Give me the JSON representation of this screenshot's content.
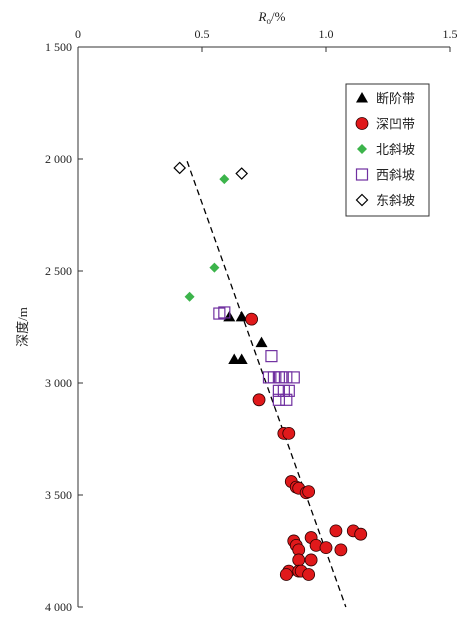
{
  "chart_data": {
    "type": "scatter",
    "xlabel": "R",
    "xlabel_sub": "o",
    "xlabel_unit": "/%",
    "ylabel": "深度/m",
    "xlim": [
      0,
      1.5
    ],
    "ylim": [
      1500,
      4000
    ],
    "y_reversed": true,
    "x_axis_position": "top",
    "x_ticks": [
      0,
      0.5,
      1.0,
      1.5
    ],
    "x_tick_labels": [
      "0",
      "0.5",
      "1.0",
      "1.5"
    ],
    "y_ticks": [
      1500,
      2000,
      2500,
      3000,
      3500,
      4000
    ],
    "y_tick_labels": [
      "1 500",
      "2 000",
      "2 500",
      "3 000",
      "3 500",
      "4 000"
    ],
    "grid": false,
    "legend_position": "top-right",
    "series": [
      {
        "name": "断阶带",
        "marker": "triangle",
        "color": "#000000",
        "points": [
          [
            0.61,
            2705
          ],
          [
            0.66,
            2705
          ],
          [
            0.74,
            2820
          ],
          [
            0.63,
            2895
          ],
          [
            0.66,
            2895
          ]
        ]
      },
      {
        "name": "深凹带",
        "marker": "circle",
        "color": "#e0191b",
        "points": [
          [
            0.7,
            2715
          ],
          [
            0.73,
            3075
          ],
          [
            0.83,
            3225
          ],
          [
            0.85,
            3225
          ],
          [
            0.86,
            3440
          ],
          [
            0.88,
            3465
          ],
          [
            0.89,
            3470
          ],
          [
            0.92,
            3490
          ],
          [
            0.93,
            3485
          ],
          [
            0.94,
            3690
          ],
          [
            0.87,
            3705
          ],
          [
            0.88,
            3725
          ],
          [
            0.89,
            3745
          ],
          [
            0.96,
            3725
          ],
          [
            1.0,
            3735
          ],
          [
            1.04,
            3660
          ],
          [
            1.06,
            3745
          ],
          [
            1.11,
            3660
          ],
          [
            1.14,
            3675
          ],
          [
            0.89,
            3790
          ],
          [
            0.94,
            3790
          ],
          [
            0.85,
            3840
          ],
          [
            0.89,
            3840
          ],
          [
            0.9,
            3840
          ],
          [
            0.84,
            3855
          ],
          [
            0.93,
            3855
          ]
        ]
      },
      {
        "name": "北斜坡",
        "marker": "diamond",
        "color": "#3cb44b",
        "points": [
          [
            0.59,
            2090
          ],
          [
            0.55,
            2485
          ],
          [
            0.45,
            2615
          ]
        ]
      },
      {
        "name": "西斜坡",
        "marker": "square-open",
        "color": "#7030a0",
        "points": [
          [
            0.57,
            2690
          ],
          [
            0.59,
            2685
          ],
          [
            0.78,
            2880
          ],
          [
            0.77,
            2975
          ],
          [
            0.79,
            2975
          ],
          [
            0.81,
            2975
          ],
          [
            0.82,
            2975
          ],
          [
            0.84,
            2975
          ],
          [
            0.87,
            2975
          ],
          [
            0.81,
            3035
          ],
          [
            0.83,
            3035
          ],
          [
            0.85,
            3035
          ],
          [
            0.81,
            3075
          ],
          [
            0.84,
            3075
          ]
        ]
      },
      {
        "name": "东斜坡",
        "marker": "diamond-open",
        "color": "#000000",
        "points": [
          [
            0.41,
            2040
          ],
          [
            0.66,
            2065
          ]
        ]
      }
    ],
    "trendline": {
      "style": "dashed",
      "color": "#000000",
      "points": [
        [
          0.44,
          2010
        ],
        [
          1.08,
          4000
        ]
      ]
    }
  }
}
